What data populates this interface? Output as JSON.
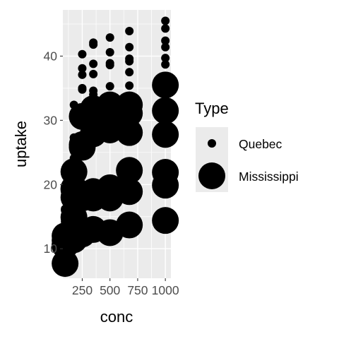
{
  "chart_data": {
    "type": "scatter",
    "title": "",
    "xlabel": "conc",
    "ylabel": "uptake",
    "xlim": [
      75,
      1050
    ],
    "ylim": [
      5.4,
      47.2
    ],
    "x_ticks": [
      250,
      500,
      750,
      1000
    ],
    "x_tick_labels": [
      "250",
      "500",
      "750",
      "1000"
    ],
    "y_ticks": [
      10,
      20,
      30,
      40
    ],
    "y_tick_labels": [
      "10",
      "20",
      "30",
      "40"
    ],
    "grid": true,
    "legend": {
      "title": "Type",
      "position": "right",
      "encoding": "size"
    },
    "series": [
      {
        "name": "Quebec",
        "x": [
          95,
          175,
          250,
          350,
          500,
          675,
          1000,
          95,
          175,
          250,
          350,
          500,
          675,
          1000,
          95,
          175,
          250,
          350,
          500,
          675,
          1000,
          95,
          175,
          250,
          350,
          500,
          675,
          1000,
          95,
          175,
          250,
          350,
          500,
          675,
          1000,
          95,
          175,
          250,
          350,
          500,
          675,
          1000
        ],
        "y": [
          16.0,
          30.4,
          34.8,
          37.2,
          35.3,
          39.2,
          39.7,
          13.6,
          27.3,
          37.1,
          41.8,
          40.6,
          41.4,
          44.3,
          16.2,
          32.4,
          40.3,
          42.1,
          42.9,
          43.9,
          45.5,
          14.2,
          24.1,
          30.3,
          34.6,
          32.5,
          35.4,
          38.7,
          9.3,
          27.3,
          35.0,
          38.8,
          38.6,
          37.5,
          42.4,
          15.1,
          21.0,
          38.1,
          34.0,
          38.9,
          39.6,
          41.4
        ]
      },
      {
        "name": "Mississippi",
        "x": [
          95,
          175,
          250,
          350,
          500,
          675,
          1000,
          95,
          175,
          250,
          350,
          500,
          675,
          1000,
          95,
          175,
          250,
          350,
          500,
          675,
          1000,
          95,
          175,
          250,
          350,
          500,
          675,
          1000,
          95,
          175,
          250,
          350,
          500,
          675,
          1000,
          95,
          175,
          250,
          350,
          500,
          675,
          1000
        ],
        "y": [
          10.6,
          19.2,
          26.2,
          30.0,
          30.9,
          32.4,
          35.5,
          12.0,
          22.0,
          30.6,
          31.8,
          32.4,
          31.1,
          31.5,
          11.3,
          19.4,
          25.8,
          27.9,
          28.5,
          28.1,
          27.8,
          10.5,
          14.9,
          18.1,
          18.9,
          19.5,
          22.2,
          21.9,
          7.7,
          11.4,
          12.3,
          13.0,
          12.5,
          13.7,
          14.4,
          10.6,
          18.0,
          17.9,
          17.9,
          17.9,
          18.9,
          19.9
        ]
      }
    ]
  }
}
